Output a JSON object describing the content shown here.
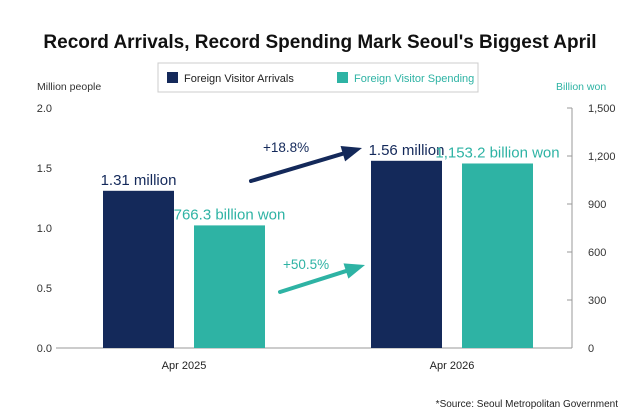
{
  "chart_data": {
    "type": "bar",
    "title": "Record Arrivals, Record Spending Mark Seoul's Biggest April",
    "categories": [
      "Apr 2025",
      "Apr 2026"
    ],
    "series": [
      {
        "name": "Foreign Visitor Arrivals",
        "axis": "left",
        "color": "#14295a",
        "values": [
          1.31,
          1.56
        ],
        "labels": [
          "1.31 million",
          "1.56 million"
        ],
        "change_label": "+18.8%"
      },
      {
        "name": "Foreign Visitor Spending",
        "axis": "right",
        "color": "#2eb3a4",
        "values": [
          766.3,
          1153.2
        ],
        "labels": [
          "766.3 billion won",
          "1,153.2 billion won"
        ],
        "change_label": "+50.5%"
      }
    ],
    "y_left": {
      "label": "Million people",
      "ylim": [
        0,
        2.0
      ],
      "ticks": [
        "0.0",
        "0.5",
        "1.0",
        "1.5",
        "2.0"
      ]
    },
    "y_right": {
      "label": "Billion won",
      "ylim": [
        0,
        1500
      ],
      "ticks": [
        "0",
        "300",
        "600",
        "900",
        "1,200",
        "1,500"
      ]
    },
    "grid": false,
    "legend_position": "top-center",
    "source": "*Source: Seoul Metropolitan Government"
  }
}
